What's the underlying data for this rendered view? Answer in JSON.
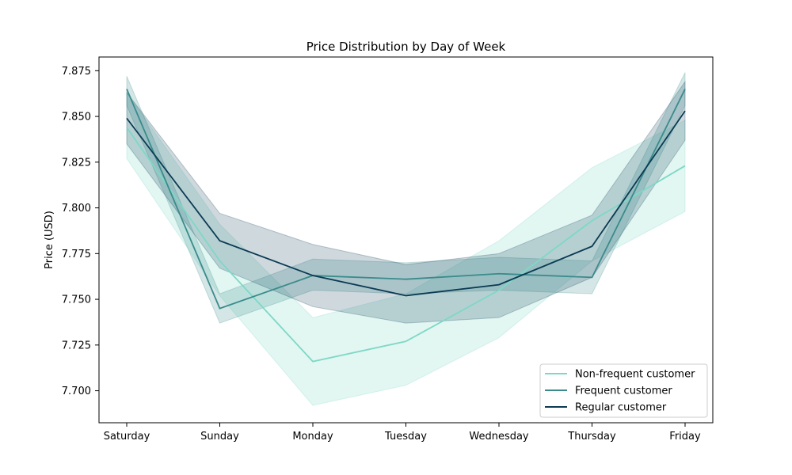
{
  "chart_data": {
    "type": "line",
    "title": "Price Distribution by Day of Week",
    "xlabel": "",
    "ylabel": "Price (USD)",
    "categories": [
      "Saturday",
      "Sunday",
      "Monday",
      "Tuesday",
      "Wednesday",
      "Thursday",
      "Friday"
    ],
    "ylim": [
      7.6825,
      7.8825
    ],
    "yticks": [
      7.7,
      7.725,
      7.75,
      7.775,
      7.8,
      7.825,
      7.85,
      7.875
    ],
    "ytick_labels": [
      "7.700",
      "7.725",
      "7.750",
      "7.775",
      "7.800",
      "7.825",
      "7.850",
      "7.875"
    ],
    "grid": false,
    "legend_position": "lower-right",
    "series": [
      {
        "name": "Non-frequent customer",
        "color": "#7dd8c6",
        "values": [
          7.844,
          7.771,
          7.716,
          7.727,
          7.755,
          7.793,
          7.823
        ],
        "lower": [
          7.827,
          7.752,
          7.692,
          7.703,
          7.729,
          7.771,
          7.798
        ],
        "upper": [
          7.863,
          7.791,
          7.74,
          7.753,
          7.782,
          7.822,
          7.848
        ],
        "band_opacity": 0.22
      },
      {
        "name": "Frequent customer",
        "color": "#3a8b8b",
        "values": [
          7.865,
          7.745,
          7.763,
          7.761,
          7.764,
          7.762,
          7.865
        ],
        "lower": [
          7.856,
          7.737,
          7.755,
          7.753,
          7.755,
          7.753,
          7.856
        ],
        "upper": [
          7.872,
          7.753,
          7.772,
          7.77,
          7.773,
          7.771,
          7.874
        ],
        "band_opacity": 0.22
      },
      {
        "name": "Regular customer",
        "color": "#0b3a53",
        "values": [
          7.849,
          7.782,
          7.763,
          7.752,
          7.758,
          7.779,
          7.853
        ],
        "lower": [
          7.835,
          7.767,
          7.746,
          7.737,
          7.74,
          7.762,
          7.837
        ],
        "upper": [
          7.863,
          7.797,
          7.78,
          7.769,
          7.775,
          7.796,
          7.869
        ],
        "band_opacity": 0.2
      }
    ]
  }
}
